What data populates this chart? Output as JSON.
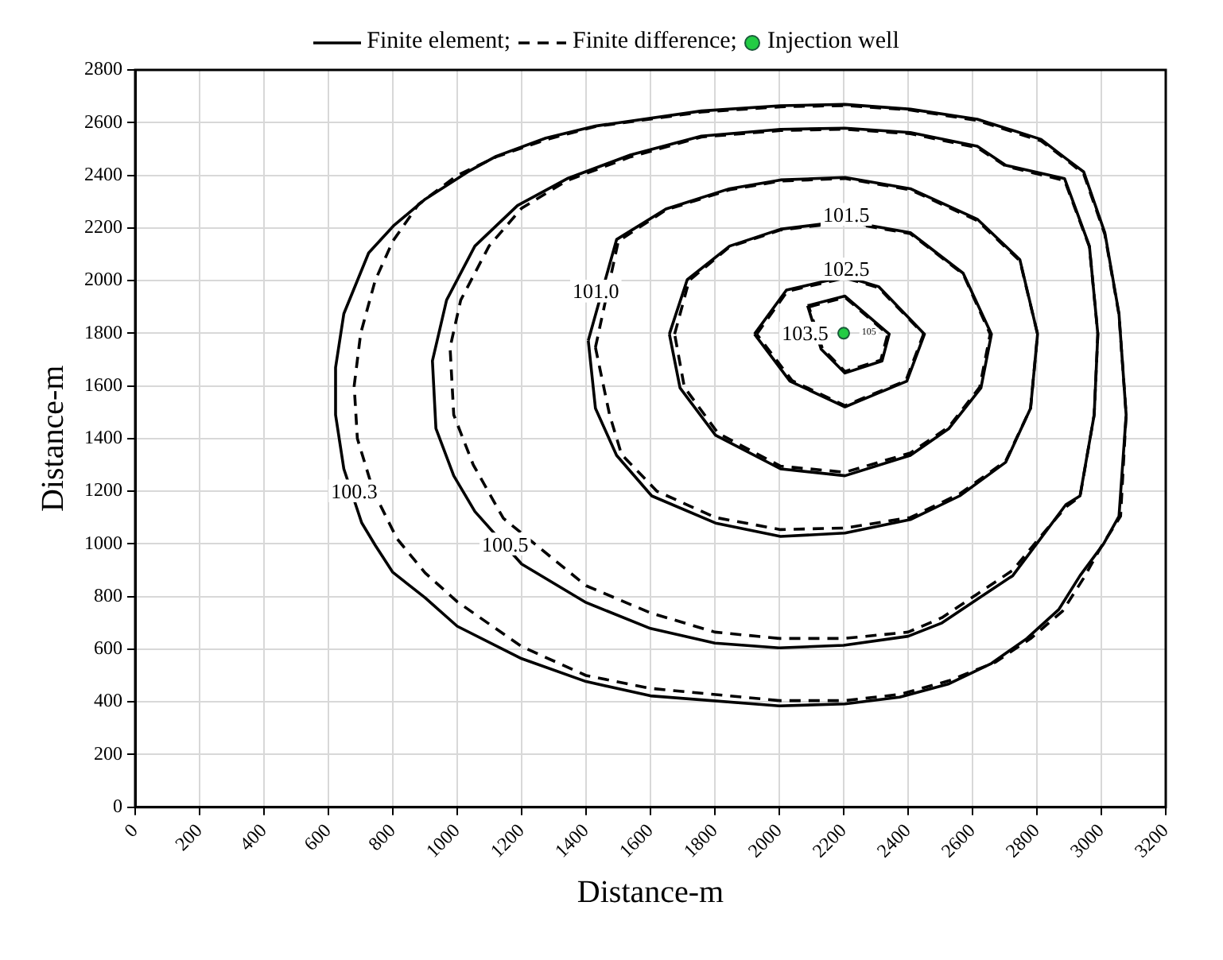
{
  "chart_data": {
    "type": "scatter",
    "xlabel": "Distance-m",
    "ylabel": "Distance-m",
    "xlim": [
      0,
      3200
    ],
    "xticks": [
      0,
      200,
      400,
      600,
      800,
      1000,
      1200,
      1400,
      1600,
      1800,
      2000,
      2200,
      2400,
      2600,
      2800,
      3000,
      3200
    ],
    "ylim": [
      0,
      2800
    ],
    "yticks": [
      0,
      200,
      400,
      600,
      800,
      1000,
      1200,
      1400,
      1600,
      1800,
      2000,
      2200,
      2400,
      2600,
      2800
    ],
    "grid": true,
    "legend": "top",
    "series": [
      {
        "name": "Injection well",
        "type": "scatter",
        "marker": "circle",
        "color": "#22cc44",
        "x": [
          2200
        ],
        "values": [
          1800
        ]
      }
    ],
    "annotations": [
      "Finite element;",
      "Finite difference;",
      "100.3",
      "100.5",
      "101.0",
      "101.5",
      "102.5",
      "103.5",
      "105"
    ]
  }
}
